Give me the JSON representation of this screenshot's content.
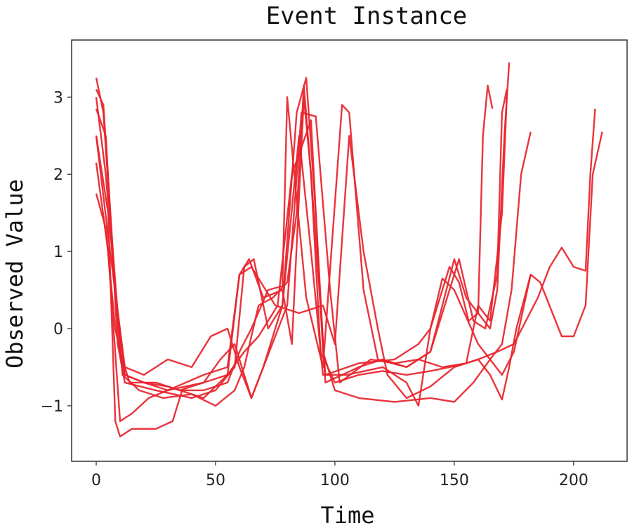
{
  "chart_data": {
    "type": "line",
    "title": "Event Instance",
    "xlabel": "Time",
    "ylabel": "Observed Value",
    "xlim": [
      -10.3,
      222.4
    ],
    "ylim": [
      -1.72,
      3.74
    ],
    "xticks": [
      0,
      50,
      100,
      150,
      200
    ],
    "xtick_labels": [
      "0",
      "50",
      "100",
      "150",
      "200"
    ],
    "yticks": [
      -1,
      0,
      1,
      2,
      3
    ],
    "ytick_labels": [
      "−1",
      "0",
      "1",
      "2",
      "3"
    ],
    "grid": false,
    "line_color": "#e8232b",
    "series": [
      {
        "points": [
          [
            0,
            3.25
          ],
          [
            3,
            2.8
          ],
          [
            8,
            0.5
          ],
          [
            12,
            -0.6
          ],
          [
            20,
            -0.7
          ],
          [
            30,
            -0.8
          ],
          [
            45,
            -0.6
          ],
          [
            55,
            -0.5
          ],
          [
            60,
            0.7
          ],
          [
            64,
            0.9
          ],
          [
            70,
            0.4
          ],
          [
            78,
            0.5
          ],
          [
            82,
            -0.2
          ],
          [
            87,
            3.0
          ],
          [
            90,
            2.0
          ],
          [
            96,
            -0.6
          ],
          [
            110,
            -0.45
          ],
          [
            125,
            -0.4
          ],
          [
            135,
            -0.2
          ],
          [
            140,
            0.0
          ],
          [
            148,
            0.8
          ],
          [
            152,
            0.6
          ],
          [
            156,
            0.1
          ],
          [
            160,
            0.2
          ],
          [
            162,
            2.5
          ],
          [
            164,
            3.15
          ],
          [
            166,
            2.85
          ]
        ]
      },
      {
        "points": [
          [
            0,
            2.85
          ],
          [
            4,
            2.5
          ],
          [
            9,
            -0.2
          ],
          [
            12,
            -0.7
          ],
          [
            25,
            -0.8
          ],
          [
            40,
            -0.9
          ],
          [
            50,
            -0.8
          ],
          [
            58,
            -0.5
          ],
          [
            62,
            0.8
          ],
          [
            66,
            0.9
          ],
          [
            72,
            0.0
          ],
          [
            78,
            0.3
          ],
          [
            84,
            2.8
          ],
          [
            88,
            3.25
          ],
          [
            92,
            1.5
          ],
          [
            96,
            -0.7
          ],
          [
            110,
            -0.5
          ],
          [
            120,
            -0.4
          ],
          [
            130,
            -0.5
          ],
          [
            140,
            -0.3
          ],
          [
            150,
            0.9
          ],
          [
            155,
            0.4
          ],
          [
            165,
            0.0
          ],
          [
            168,
            0.5
          ],
          [
            171,
            2.5
          ],
          [
            173,
            3.45
          ]
        ]
      },
      {
        "points": [
          [
            0,
            2.5
          ],
          [
            5,
            1.5
          ],
          [
            8,
            -1.2
          ],
          [
            10,
            -1.4
          ],
          [
            15,
            -1.3
          ],
          [
            25,
            -1.3
          ],
          [
            32,
            -1.2
          ],
          [
            36,
            -0.8
          ],
          [
            45,
            -0.8
          ],
          [
            55,
            -0.7
          ],
          [
            60,
            -0.3
          ],
          [
            65,
            0.0
          ],
          [
            72,
            0.5
          ],
          [
            78,
            0.55
          ],
          [
            80,
            3.0
          ],
          [
            83,
            2.0
          ],
          [
            88,
            0.4
          ],
          [
            95,
            -0.5
          ],
          [
            103,
            2.9
          ],
          [
            106,
            2.8
          ],
          [
            112,
            0.5
          ],
          [
            118,
            -0.4
          ],
          [
            130,
            -0.5
          ],
          [
            140,
            -0.3
          ],
          [
            146,
            0.3
          ],
          [
            152,
            0.9
          ],
          [
            158,
            0.1
          ],
          [
            163,
            0.0
          ],
          [
            168,
            0.7
          ],
          [
            170,
            2.8
          ],
          [
            172,
            3.1
          ]
        ]
      },
      {
        "points": [
          [
            0,
            2.15
          ],
          [
            5,
            1.0
          ],
          [
            10,
            -1.2
          ],
          [
            15,
            -1.1
          ],
          [
            22,
            -0.9
          ],
          [
            30,
            -0.8
          ],
          [
            45,
            -0.7
          ],
          [
            55,
            -0.6
          ],
          [
            62,
            -0.3
          ],
          [
            68,
            -0.1
          ],
          [
            76,
            0.3
          ],
          [
            82,
            2.0
          ],
          [
            90,
            2.7
          ],
          [
            95,
            -0.3
          ],
          [
            100,
            -0.8
          ],
          [
            110,
            -0.9
          ],
          [
            125,
            -0.95
          ],
          [
            140,
            -0.9
          ],
          [
            150,
            -0.95
          ],
          [
            158,
            -0.7
          ],
          [
            165,
            -0.4
          ],
          [
            170,
            -0.2
          ],
          [
            174,
            0.5
          ],
          [
            178,
            2.0
          ],
          [
            182,
            2.55
          ]
        ]
      },
      {
        "points": [
          [
            0,
            1.75
          ],
          [
            4,
            1.3
          ],
          [
            8,
            0.0
          ],
          [
            12,
            -0.6
          ],
          [
            20,
            -0.7
          ],
          [
            30,
            -0.75
          ],
          [
            45,
            -0.9
          ],
          [
            55,
            -0.6
          ],
          [
            60,
            0.7
          ],
          [
            65,
            0.8
          ],
          [
            75,
            0.3
          ],
          [
            85,
            0.2
          ],
          [
            95,
            0.3
          ],
          [
            100,
            -0.2
          ],
          [
            106,
            2.5
          ],
          [
            112,
            1.0
          ],
          [
            118,
            0.0
          ],
          [
            122,
            -0.6
          ],
          [
            130,
            -0.9
          ],
          [
            140,
            -0.75
          ],
          [
            150,
            -0.5
          ],
          [
            160,
            -0.4
          ],
          [
            168,
            -0.3
          ],
          [
            175,
            -0.2
          ],
          [
            185,
            0.4
          ],
          [
            190,
            0.8
          ],
          [
            195,
            1.05
          ],
          [
            200,
            0.8
          ],
          [
            205,
            0.75
          ],
          [
            207,
            2.0
          ],
          [
            209,
            2.85
          ]
        ]
      },
      {
        "points": [
          [
            0,
            3.0
          ],
          [
            4,
            2.0
          ],
          [
            10,
            -0.3
          ],
          [
            14,
            -0.7
          ],
          [
            25,
            -0.7
          ],
          [
            35,
            -0.8
          ],
          [
            45,
            -0.7
          ],
          [
            52,
            -0.4
          ],
          [
            58,
            -0.2
          ],
          [
            65,
            -0.9
          ],
          [
            70,
            -0.5
          ],
          [
            78,
            0.3
          ],
          [
            85,
            2.5
          ],
          [
            90,
            1.0
          ],
          [
            95,
            -0.6
          ],
          [
            105,
            -0.6
          ],
          [
            120,
            -0.5
          ],
          [
            130,
            -0.7
          ],
          [
            135,
            -1.0
          ],
          [
            140,
            0.0
          ],
          [
            145,
            0.65
          ],
          [
            150,
            0.5
          ],
          [
            160,
            -0.2
          ],
          [
            170,
            -0.6
          ],
          [
            175,
            -0.3
          ],
          [
            182,
            0.7
          ],
          [
            186,
            0.6
          ],
          [
            195,
            -0.1
          ],
          [
            200,
            -0.1
          ],
          [
            205,
            0.3
          ],
          [
            208,
            2.0
          ],
          [
            212,
            2.55
          ]
        ]
      },
      {
        "points": [
          [
            0,
            2.5
          ],
          [
            5,
            1.2
          ],
          [
            12,
            -0.5
          ],
          [
            20,
            -0.6
          ],
          [
            30,
            -0.4
          ],
          [
            40,
            -0.5
          ],
          [
            48,
            -0.1
          ],
          [
            55,
            0.0
          ],
          [
            60,
            -0.5
          ],
          [
            65,
            -0.9
          ],
          [
            70,
            -0.5
          ],
          [
            80,
            0.3
          ],
          [
            86,
            2.8
          ],
          [
            92,
            2.75
          ],
          [
            98,
            0.5
          ],
          [
            102,
            -0.7
          ],
          [
            115,
            -0.4
          ],
          [
            125,
            -0.45
          ],
          [
            135,
            -0.4
          ],
          [
            145,
            -0.5
          ],
          [
            155,
            -0.45
          ],
          [
            160,
            -0.4
          ],
          [
            165,
            -0.6
          ],
          [
            170,
            -0.92
          ],
          [
            173,
            -0.5
          ],
          [
            176,
            0.0
          ],
          [
            182,
            0.7
          ]
        ]
      },
      {
        "points": [
          [
            0,
            3.1
          ],
          [
            3,
            2.9
          ],
          [
            7,
            1.0
          ],
          [
            11,
            -0.6
          ],
          [
            18,
            -0.8
          ],
          [
            28,
            -0.9
          ],
          [
            40,
            -0.85
          ],
          [
            50,
            -1.0
          ],
          [
            58,
            -0.8
          ],
          [
            62,
            -0.5
          ],
          [
            68,
            0.3
          ],
          [
            74,
            0.4
          ],
          [
            80,
            0.6
          ],
          [
            84,
            1.5
          ],
          [
            87,
            3.15
          ],
          [
            90,
            2.0
          ],
          [
            94,
            -0.3
          ],
          [
            100,
            -0.7
          ],
          [
            110,
            -0.6
          ],
          [
            120,
            -0.55
          ],
          [
            130,
            -0.6
          ],
          [
            140,
            -0.55
          ],
          [
            148,
            -0.5
          ],
          [
            155,
            -0.45
          ],
          [
            160,
            0.3
          ],
          [
            165,
            0.1
          ],
          [
            170,
            1.5
          ],
          [
            172,
            3.0
          ]
        ]
      }
    ]
  }
}
